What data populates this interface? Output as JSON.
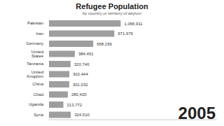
{
  "chart_data": {
    "type": "bar",
    "title": "Refugee Population",
    "subtitle": "by country or territory of asylum",
    "annotation": "2005",
    "orientation": "horizontal",
    "categories": [
      "Pakistan",
      "Iran",
      "Germany",
      "United States",
      "Tanzania",
      "United Kingdom",
      "China",
      "Chad",
      "Uganda",
      "Syria"
    ],
    "values": [
      1066911,
      971679,
      658156,
      384451,
      320746,
      302444,
      301032,
      280420,
      213772,
      324510
    ],
    "value_labels": [
      "1,066,911",
      "971,679",
      "658,156",
      "384,451",
      "320,746",
      "302,444",
      "301,032",
      "280,420",
      "213,772",
      "324,510"
    ],
    "color": "#9e9e9e",
    "xlim": [
      0,
      2500000
    ],
    "tick_labels": "y",
    "data_labels": true,
    "grid": false
  }
}
